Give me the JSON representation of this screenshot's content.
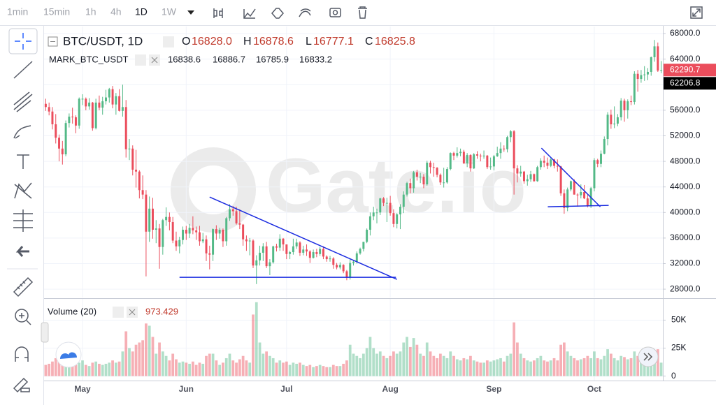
{
  "toolbar": {
    "intervals": [
      "1min",
      "15min",
      "1h",
      "4h",
      "1D",
      "1W"
    ],
    "active": 4
  },
  "chart_data": {
    "type": "candlestick",
    "symbol": "BTC/USDT, 1D",
    "ohlc_legend": [
      {
        "label": "O",
        "value": "16828.0"
      },
      {
        "label": "H",
        "value": "16878.6"
      },
      {
        "label": "L",
        "value": "16777.1"
      },
      {
        "label": "C",
        "value": "16825.8"
      }
    ],
    "mark_name": "MARK_BTC_USDT",
    "mark_values": [
      "16838.6",
      "16886.7",
      "16785.9",
      "16833.2"
    ],
    "volume_title": "Volume (20)",
    "volume_value": "973.429",
    "watermark": "Gate.io",
    "up_color": "#53b987",
    "down_color": "#eb4d5c",
    "grid": true,
    "xlim": [
      -0.5,
      184.5
    ],
    "xticks": [
      {
        "value": 11,
        "label": "May"
      },
      {
        "value": 42,
        "label": "Jun"
      },
      {
        "value": 72,
        "label": "Jul"
      },
      {
        "value": 103,
        "label": "Aug"
      },
      {
        "value": 134,
        "label": "Sep"
      },
      {
        "value": 164,
        "label": "Oct"
      }
    ],
    "ylim": [
      26700,
      69100
    ],
    "yticks": [
      {
        "value": 28000,
        "label": "28000.0"
      },
      {
        "value": 32000,
        "label": "32000.0"
      },
      {
        "value": 36000,
        "label": "36000.0"
      },
      {
        "value": 40000,
        "label": "40000.0"
      },
      {
        "value": 44000,
        "label": "44000.0"
      },
      {
        "value": 48000,
        "label": "48000.0"
      },
      {
        "value": 52000,
        "label": "52000.0"
      },
      {
        "value": 56000,
        "label": "56000.0"
      },
      {
        "value": 60000,
        "label": "60000.0"
      },
      {
        "value": 64000,
        "label": "64000.0"
      },
      {
        "value": 68000,
        "label": "68000.0"
      }
    ],
    "price_tags": [
      {
        "value": 62290.7,
        "color": "#eb4d5c"
      },
      {
        "value": 62206.8,
        "color": "#000000"
      }
    ],
    "volume_ylim": [
      -4000,
      69000
    ],
    "volume_ticks": [
      {
        "value": 0,
        "label": "0"
      },
      {
        "value": 25000,
        "label": "25K"
      },
      {
        "value": 50000,
        "label": "50K"
      }
    ],
    "trendline_color": "#1a2be0",
    "trendlines": [
      [
        [
          49,
          42420
        ],
        [
          105,
          29530
        ]
      ],
      [
        [
          40,
          29860
        ],
        [
          104.7,
          29860
        ]
      ],
      [
        [
          148.2,
          50070
        ],
        [
          165.8,
          40890
        ]
      ],
      [
        [
          150.1,
          40890
        ],
        [
          168.3,
          41110
        ]
      ]
    ],
    "ohlc": [
      [
        57000,
        57800,
        55900,
        56500
      ],
      [
        56500,
        57200,
        55200,
        55800
      ],
      [
        55800,
        56500,
        53000,
        53800
      ],
      [
        53800,
        55400,
        50800,
        51700
      ],
      [
        51700,
        52200,
        48000,
        50000
      ],
      [
        50000,
        51200,
        47500,
        49100
      ],
      [
        49100,
        54400,
        48800,
        54000
      ],
      [
        54000,
        55500,
        53300,
        55000
      ],
      [
        55000,
        56400,
        53900,
        54900
      ],
      [
        54900,
        55200,
        52400,
        53600
      ],
      [
        53600,
        58000,
        53100,
        57800
      ],
      [
        57800,
        58500,
        56800,
        57800
      ],
      [
        57800,
        58000,
        56000,
        56600
      ],
      [
        56600,
        57900,
        56100,
        57200
      ],
      [
        57200,
        57300,
        52800,
        53200
      ],
      [
        53200,
        57800,
        53000,
        57200
      ],
      [
        57200,
        58300,
        56000,
        56400
      ],
      [
        56400,
        58100,
        55300,
        57400
      ],
      [
        57400,
        59200,
        56900,
        58000
      ],
      [
        58000,
        59500,
        57200,
        59300
      ],
      [
        59300,
        59800,
        56300,
        56900
      ],
      [
        56900,
        58700,
        55300,
        58200
      ],
      [
        58200,
        59300,
        55800,
        55900
      ],
      [
        55900,
        60000,
        55000,
        56500
      ],
      [
        56500,
        57600,
        48600,
        49900
      ],
      [
        49900,
        51500,
        48200,
        50000
      ],
      [
        50000,
        50500,
        45800,
        46700
      ],
      [
        46700,
        49800,
        43900,
        46400
      ],
      [
        46400,
        46600,
        42200,
        43500
      ],
      [
        43500,
        45800,
        42100,
        42800
      ],
      [
        42800,
        43500,
        30000,
        37000
      ],
      [
        37000,
        42500,
        35400,
        40600
      ],
      [
        40600,
        42300,
        35900,
        37300
      ],
      [
        37300,
        38800,
        35200,
        37500
      ],
      [
        37500,
        38200,
        31200,
        34600
      ],
      [
        34600,
        39000,
        33400,
        38800
      ],
      [
        38800,
        40800,
        37900,
        39300
      ],
      [
        39300,
        40000,
        37200,
        38500
      ],
      [
        38500,
        39300,
        35200,
        35600
      ],
      [
        35600,
        37000,
        34000,
        34700
      ],
      [
        34700,
        36200,
        33600,
        35700
      ],
      [
        35700,
        37800,
        35000,
        37300
      ],
      [
        37300,
        37900,
        35700,
        36700
      ],
      [
        36700,
        38200,
        36000,
        37600
      ],
      [
        37600,
        39400,
        36600,
        37200
      ],
      [
        37200,
        37800,
        35700,
        36900
      ],
      [
        36900,
        37900,
        34800,
        35500
      ],
      [
        35500,
        36800,
        35200,
        35800
      ],
      [
        35800,
        36400,
        32400,
        33600
      ],
      [
        33600,
        34800,
        31100,
        33400
      ],
      [
        33400,
        37500,
        32400,
        37400
      ],
      [
        37400,
        38000,
        35700,
        36700
      ],
      [
        36700,
        37600,
        35900,
        37300
      ],
      [
        37300,
        37500,
        34600,
        35500
      ],
      [
        35500,
        39300,
        34800,
        39100
      ],
      [
        39100,
        41300,
        38700,
        40500
      ],
      [
        40500,
        41000,
        39500,
        40200
      ],
      [
        40200,
        40900,
        38100,
        38300
      ],
      [
        38300,
        40500,
        37400,
        38100
      ],
      [
        38100,
        38200,
        34800,
        35800
      ],
      [
        35800,
        36400,
        34000,
        35500
      ],
      [
        35500,
        36000,
        33300,
        35600
      ],
      [
        35600,
        35800,
        31300,
        31700
      ],
      [
        31700,
        33300,
        28800,
        32500
      ],
      [
        32500,
        34800,
        31700,
        33700
      ],
      [
        33700,
        35200,
        32400,
        34700
      ],
      [
        34700,
        35400,
        31300,
        31600
      ],
      [
        31600,
        32700,
        30200,
        32200
      ],
      [
        32200,
        34800,
        32000,
        34700
      ],
      [
        34700,
        35100,
        33900,
        34500
      ],
      [
        34500,
        36600,
        34000,
        35900
      ],
      [
        35900,
        36000,
        34000,
        35000
      ],
      [
        35000,
        35000,
        32700,
        33500
      ],
      [
        33500,
        34000,
        32700,
        33800
      ],
      [
        33800,
        35900,
        33400,
        34700
      ],
      [
        34700,
        35900,
        34300,
        35300
      ],
      [
        35300,
        35500,
        33200,
        33700
      ],
      [
        33700,
        34800,
        33300,
        34200
      ],
      [
        34200,
        35000,
        33200,
        33900
      ],
      [
        33900,
        34100,
        32100,
        32900
      ],
      [
        32900,
        34200,
        32800,
        33800
      ],
      [
        33800,
        34300,
        33000,
        33500
      ],
      [
        33500,
        34600,
        33200,
        34300
      ],
      [
        34300,
        34700,
        32700,
        33100
      ],
      [
        33100,
        33300,
        32300,
        32700
      ],
      [
        32700,
        33200,
        32300,
        32800
      ],
      [
        32800,
        33000,
        31200,
        31800
      ],
      [
        31800,
        32100,
        31100,
        31400
      ],
      [
        31400,
        32200,
        31100,
        31800
      ],
      [
        31800,
        31900,
        30500,
        30800
      ],
      [
        30800,
        31000,
        29400,
        29800
      ],
      [
        29800,
        32800,
        29500,
        32100
      ],
      [
        32100,
        32600,
        31700,
        32300
      ],
      [
        32300,
        33900,
        32000,
        33600
      ],
      [
        33600,
        34500,
        33400,
        34300
      ],
      [
        34300,
        35400,
        33900,
        35400
      ],
      [
        35400,
        37500,
        35200,
        37300
      ],
      [
        37300,
        40000,
        36400,
        39400
      ],
      [
        39400,
        40900,
        38800,
        40000
      ],
      [
        40000,
        40600,
        38300,
        40000
      ],
      [
        40000,
        42300,
        39600,
        42200
      ],
      [
        42200,
        42400,
        41000,
        41500
      ],
      [
        41500,
        42300,
        38500,
        41500
      ],
      [
        41500,
        42600,
        39500,
        39900
      ],
      [
        39900,
        40500,
        37700,
        38200
      ],
      [
        38200,
        39900,
        37500,
        39700
      ],
      [
        39700,
        41300,
        37400,
        40900
      ],
      [
        40900,
        43300,
        39900,
        42800
      ],
      [
        42800,
        44800,
        42500,
        44600
      ],
      [
        44600,
        45300,
        43000,
        43800
      ],
      [
        43800,
        46500,
        43100,
        46300
      ],
      [
        46300,
        46700,
        45000,
        45600
      ],
      [
        45600,
        46200,
        44600,
        45600
      ],
      [
        45600,
        46000,
        43800,
        44400
      ],
      [
        44400,
        48100,
        44200,
        47800
      ],
      [
        47800,
        48100,
        46100,
        47100
      ],
      [
        47100,
        47800,
        45600,
        47000
      ],
      [
        47000,
        47100,
        45500,
        45900
      ],
      [
        45900,
        46100,
        44300,
        44700
      ],
      [
        44700,
        47000,
        43900,
        44700
      ],
      [
        44700,
        47100,
        44500,
        46800
      ],
      [
        46800,
        49400,
        46600,
        49300
      ],
      [
        49300,
        49500,
        48200,
        48900
      ],
      [
        48900,
        50200,
        48600,
        49300
      ],
      [
        49300,
        50000,
        48800,
        49500
      ],
      [
        49500,
        49800,
        47600,
        47700
      ],
      [
        47700,
        49300,
        47100,
        49000
      ],
      [
        49000,
        49100,
        46400,
        46900
      ],
      [
        46900,
        49300,
        46800,
        49100
      ],
      [
        49100,
        49600,
        48400,
        48900
      ],
      [
        48900,
        49200,
        48000,
        48800
      ],
      [
        48800,
        49700,
        48400,
        48900
      ],
      [
        48900,
        49000,
        46800,
        47100
      ],
      [
        47100,
        48600,
        46700,
        47200
      ],
      [
        47200,
        49000,
        46600,
        48800
      ],
      [
        48800,
        50300,
        48700,
        49300
      ],
      [
        49300,
        51000,
        48400,
        50000
      ],
      [
        50000,
        50500,
        49500,
        49900
      ],
      [
        49900,
        52000,
        49400,
        51800
      ],
      [
        51800,
        52900,
        51000,
        52700
      ],
      [
        52700,
        52900,
        42800,
        46900
      ],
      [
        46900,
        47400,
        44700,
        46100
      ],
      [
        46100,
        47300,
        45600,
        46400
      ],
      [
        46400,
        46500,
        44500,
        44900
      ],
      [
        44900,
        45900,
        44200,
        45200
      ],
      [
        45200,
        46500,
        44800,
        46000
      ],
      [
        46000,
        46100,
        44800,
        44900
      ],
      [
        44900,
        47300,
        44800,
        47100
      ],
      [
        47100,
        48500,
        46700,
        48100
      ],
      [
        48100,
        48900,
        47100,
        47800
      ],
      [
        47800,
        48600,
        46800,
        47300
      ],
      [
        47300,
        48500,
        47100,
        48300
      ],
      [
        48300,
        48400,
        46900,
        47300
      ],
      [
        47300,
        48300,
        46400,
        47200
      ],
      [
        47200,
        47300,
        42600,
        43000
      ],
      [
        43000,
        43600,
        39800,
        40700
      ],
      [
        40700,
        43900,
        40200,
        43600
      ],
      [
        43600,
        45000,
        43300,
        44900
      ],
      [
        44900,
        45200,
        42800,
        42800
      ],
      [
        42800,
        43000,
        40900,
        42700
      ],
      [
        42700,
        44400,
        42200,
        43200
      ],
      [
        43200,
        44300,
        42100,
        42200
      ],
      [
        42200,
        42800,
        40800,
        41000
      ],
      [
        41000,
        44000,
        40700,
        43800
      ],
      [
        43800,
        48500,
        43300,
        48200
      ],
      [
        48200,
        48400,
        47100,
        47600
      ],
      [
        47600,
        49700,
        47100,
        49200
      ],
      [
        49200,
        51900,
        49100,
        51500
      ],
      [
        51500,
        55700,
        50500,
        55300
      ],
      [
        55300,
        56100,
        53100,
        53800
      ],
      [
        53800,
        56600,
        53200,
        53900
      ],
      [
        53900,
        55400,
        53500,
        54900
      ],
      [
        54900,
        57900,
        54400,
        57500
      ],
      [
        57500,
        57800,
        54200,
        56000
      ],
      [
        56000,
        57700,
        54700,
        57400
      ],
      [
        57400,
        58300,
        56800,
        57300
      ],
      [
        57300,
        62100,
        56900,
        61700
      ],
      [
        61700,
        62300,
        58900,
        60900
      ],
      [
        60900,
        62300,
        60300,
        61500
      ],
      [
        61500,
        62900,
        60600,
        61600
      ],
      [
        61600,
        62600,
        60700,
        62000
      ],
      [
        62000,
        64400,
        61400,
        64300
      ],
      [
        64300,
        67000,
        63600,
        66000
      ],
      [
        66000,
        66600,
        62000,
        62200
      ],
      [
        62200,
        63700,
        61800,
        62300
      ]
    ],
    "volume": [
      10000,
      11000,
      13000,
      16000,
      18000,
      15000,
      14000,
      9000,
      9000,
      10000,
      12000,
      14000,
      10000,
      9000,
      12000,
      13000,
      11000,
      10000,
      11000,
      12000,
      14000,
      12000,
      13000,
      22000,
      40000,
      25000,
      22000,
      28000,
      30000,
      32000,
      47000,
      45000,
      35000,
      20000,
      30000,
      22000,
      18000,
      14000,
      20000,
      15000,
      12000,
      13000,
      12000,
      11000,
      13000,
      10000,
      12000,
      11000,
      18000,
      20000,
      20000,
      14000,
      10000,
      12000,
      16000,
      20000,
      14000,
      12000,
      15000,
      18000,
      14000,
      12000,
      55000,
      66000,
      30000,
      20000,
      22000,
      18000,
      16000,
      12000,
      14000,
      12000,
      13000,
      10000,
      12000,
      11000,
      12000,
      10000,
      9000,
      10000,
      8000,
      9000,
      10000,
      9000,
      8000,
      8000,
      10000,
      9000,
      9000,
      11000,
      14000,
      28000,
      20000,
      18000,
      16000,
      20000,
      25000,
      35000,
      25000,
      20000,
      22000,
      18000,
      16000,
      18000,
      22000,
      20000,
      22000,
      30000,
      35000,
      26000,
      34000,
      28000,
      20000,
      18000,
      30000,
      22000,
      18000,
      16000,
      20000,
      18000,
      16000,
      22000,
      18000,
      15000,
      14000,
      16000,
      15000,
      18000,
      14000,
      13000,
      12000,
      12000,
      14000,
      13000,
      14000,
      15000,
      16000,
      13000,
      18000,
      20000,
      48000,
      30000,
      20000,
      16000,
      14000,
      13000,
      14000,
      16000,
      18000,
      14000,
      13000,
      14000,
      16000,
      14000,
      28000,
      30000,
      22000,
      18000,
      16000,
      14000,
      15000,
      16000,
      18000,
      16000,
      22000,
      16000,
      15000,
      18000,
      24000,
      20000,
      16000,
      14000,
      18000,
      17000,
      15000,
      16000,
      22000,
      18000,
      14000,
      12000,
      13000,
      14000,
      20000,
      24000,
      12000
    ]
  }
}
